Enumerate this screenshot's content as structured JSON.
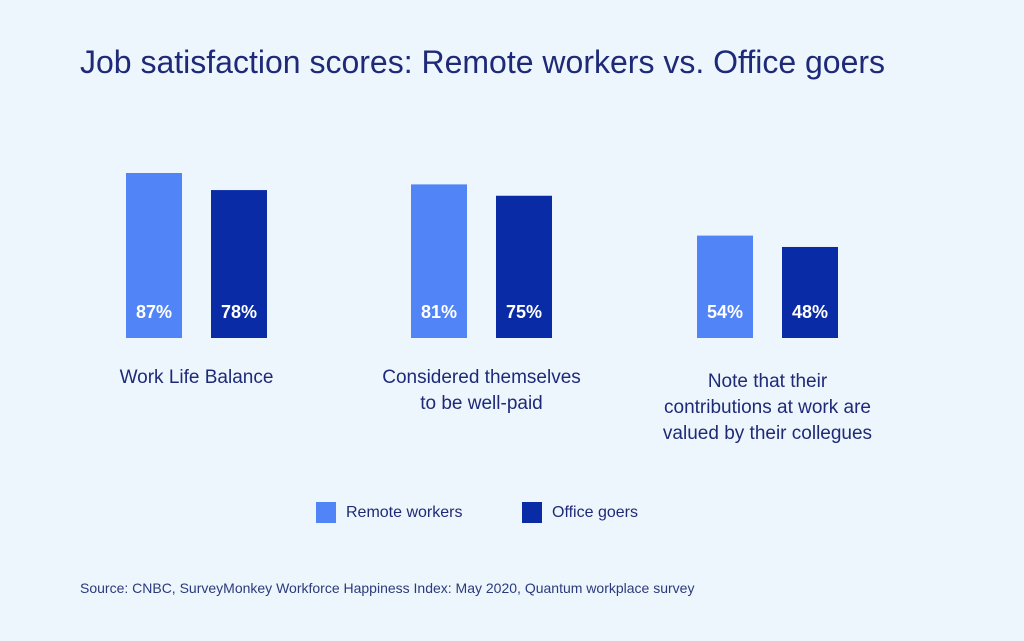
{
  "title": "Job satisfaction scores: Remote workers vs. Office goers",
  "source": "Source: CNBC, SurveyMonkey Workforce Happiness Index: May 2020, Quantum workplace survey",
  "colors": {
    "remote": "#5185f7",
    "office": "#0a2ba6",
    "background": "#eef6fd",
    "text": "#1e2a78"
  },
  "legend": {
    "remote_label": "Remote workers",
    "office_label": "Office goers"
  },
  "chart_data": {
    "type": "bar",
    "title": "Job satisfaction scores: Remote workers vs. Office goers",
    "categories": [
      "Work Life Balance",
      "Considered themselves to be well-paid",
      "Note that their contributions at work are valued by their collegues"
    ],
    "category_lines": [
      [
        "Work Life Balance"
      ],
      [
        "Considered themselves",
        "to be well-paid"
      ],
      [
        "Note that their",
        "contributions at work are",
        "valued by their collegues"
      ]
    ],
    "series": [
      {
        "name": "Remote workers",
        "values": [
          87,
          81,
          54
        ],
        "labels": [
          "87%",
          "81%",
          "54%"
        ]
      },
      {
        "name": "Office goers",
        "values": [
          78,
          75,
          48
        ],
        "labels": [
          "78%",
          "75%",
          "48%"
        ]
      }
    ],
    "unit": "%",
    "grid": false,
    "legend_position": "bottom"
  }
}
